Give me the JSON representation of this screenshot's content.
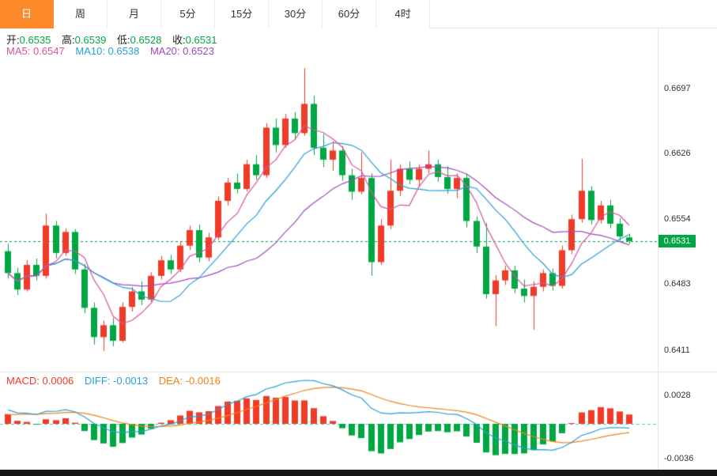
{
  "tabbar": {
    "tabs": [
      {
        "label": "日",
        "active": true
      },
      {
        "label": "周",
        "active": false
      },
      {
        "label": "月",
        "active": false
      },
      {
        "label": "5分",
        "active": false
      },
      {
        "label": "15分",
        "active": false
      },
      {
        "label": "30分",
        "active": false
      },
      {
        "label": "60分",
        "active": false
      },
      {
        "label": "4时",
        "active": false
      }
    ]
  },
  "ohlc_info": {
    "open_label": "开:",
    "open": "0.6535",
    "high_label": "高:",
    "high": "0.6539",
    "low_label": "低:",
    "low": "0.6528",
    "close_label": "收:",
    "close": "0.6531"
  },
  "ma_info": {
    "ma5_label": "MA5:",
    "ma5": "0.6547",
    "ma10_label": "MA10:",
    "ma10": "0.6538",
    "ma20_label": "MA20:",
    "ma20": "0.6523"
  },
  "macd_info": {
    "macd_label": "MACD:",
    "macd": "0.0006",
    "diff_label": "DIFF:",
    "diff": "-0.0013",
    "dea_label": "DEA:",
    "dea": "-0.0016"
  },
  "colors": {
    "up": "#f03b28",
    "down": "#00a843",
    "ma5": "#d8549c",
    "ma10": "#28a0d8",
    "ma20": "#a048c0",
    "diff_line": "#28a0d8",
    "dea_line": "#f08418",
    "zero_line": "#58c8b8",
    "last_price_line": "#00a843",
    "price_tag_bg": "#00a843",
    "tab_active_bg": "#fc8a2a",
    "axis_text": "#333333"
  },
  "chart_data": {
    "type": "candlestick",
    "title": "",
    "price_axis_labels": [
      "0.6697",
      "0.6626",
      "0.6554",
      "0.6483",
      "0.6411"
    ],
    "macd_axis_labels": [
      "0.0028",
      "-0.0036"
    ],
    "last_price": "0.6531",
    "price_range": [
      0.639,
      0.676
    ],
    "macd_range": [
      -0.0045,
      0.0045
    ],
    "overlays": [
      {
        "name": "MA5",
        "period": 5,
        "value": 0.6547
      },
      {
        "name": "MA10",
        "period": 10,
        "value": 0.6538
      },
      {
        "name": "MA20",
        "period": 20,
        "value": 0.6523
      }
    ],
    "indicator": {
      "name": "MACD",
      "macd": 0.0006,
      "diff": -0.0013,
      "dea": -0.0016
    },
    "candles": [
      [
        0.652,
        0.6528,
        0.649,
        0.6496
      ],
      [
        0.6496,
        0.6502,
        0.6472,
        0.6478
      ],
      [
        0.6478,
        0.651,
        0.6476,
        0.6505
      ],
      [
        0.6505,
        0.6512,
        0.6488,
        0.6493
      ],
      [
        0.6493,
        0.6561,
        0.649,
        0.6548
      ],
      [
        0.6548,
        0.6553,
        0.6512,
        0.6518
      ],
      [
        0.6518,
        0.6545,
        0.6515,
        0.6541
      ],
      [
        0.6541,
        0.6544,
        0.6495,
        0.65
      ],
      [
        0.65,
        0.6506,
        0.6452,
        0.6458
      ],
      [
        0.6458,
        0.6464,
        0.6418,
        0.6426
      ],
      [
        0.6426,
        0.6444,
        0.6411,
        0.6439
      ],
      [
        0.6439,
        0.6447,
        0.6416,
        0.6422
      ],
      [
        0.6422,
        0.6464,
        0.642,
        0.6459
      ],
      [
        0.6459,
        0.6481,
        0.6454,
        0.6476
      ],
      [
        0.6476,
        0.6487,
        0.6461,
        0.6467
      ],
      [
        0.6467,
        0.6497,
        0.6464,
        0.6493
      ],
      [
        0.6493,
        0.6515,
        0.6489,
        0.651
      ],
      [
        0.651,
        0.6516,
        0.6495,
        0.65
      ],
      [
        0.65,
        0.6531,
        0.6497,
        0.6526
      ],
      [
        0.6526,
        0.6548,
        0.6521,
        0.6543
      ],
      [
        0.6543,
        0.6549,
        0.6508,
        0.6513
      ],
      [
        0.6513,
        0.654,
        0.6509,
        0.6535
      ],
      [
        0.6535,
        0.658,
        0.6532,
        0.6575
      ],
      [
        0.6575,
        0.66,
        0.657,
        0.6595
      ],
      [
        0.6595,
        0.6605,
        0.6583,
        0.6588
      ],
      [
        0.6588,
        0.662,
        0.6585,
        0.6615
      ],
      [
        0.6615,
        0.6625,
        0.6598,
        0.6603
      ],
      [
        0.6603,
        0.666,
        0.66,
        0.6655
      ],
      [
        0.6655,
        0.6665,
        0.6628,
        0.6636
      ],
      [
        0.6636,
        0.667,
        0.6633,
        0.6665
      ],
      [
        0.6665,
        0.6672,
        0.6643,
        0.6649
      ],
      [
        0.6649,
        0.672,
        0.6646,
        0.6681
      ],
      [
        0.6681,
        0.669,
        0.6625,
        0.6633
      ],
      [
        0.6633,
        0.6648,
        0.6612,
        0.662
      ],
      [
        0.662,
        0.664,
        0.6608,
        0.663
      ],
      [
        0.663,
        0.6635,
        0.6597,
        0.6603
      ],
      [
        0.6603,
        0.661,
        0.6576,
        0.6585
      ],
      [
        0.6585,
        0.6628,
        0.6582,
        0.66
      ],
      [
        0.66,
        0.6605,
        0.6493,
        0.6508
      ],
      [
        0.6508,
        0.6555,
        0.6505,
        0.6548
      ],
      [
        0.6548,
        0.662,
        0.6544,
        0.6586
      ],
      [
        0.6586,
        0.6615,
        0.658,
        0.661
      ],
      [
        0.661,
        0.6618,
        0.6593,
        0.6598
      ],
      [
        0.6598,
        0.6615,
        0.659,
        0.661
      ],
      [
        0.661,
        0.663,
        0.6605,
        0.6615
      ],
      [
        0.6615,
        0.662,
        0.6596,
        0.6601
      ],
      [
        0.6601,
        0.6613,
        0.6583,
        0.6588
      ],
      [
        0.6588,
        0.6605,
        0.6578,
        0.66
      ],
      [
        0.66,
        0.6605,
        0.6546,
        0.6553
      ],
      [
        0.6553,
        0.6558,
        0.6518,
        0.6525
      ],
      [
        0.6525,
        0.6551,
        0.6468,
        0.6473
      ],
      [
        0.6473,
        0.6494,
        0.6438,
        0.6488
      ],
      [
        0.6488,
        0.6504,
        0.6483,
        0.6499
      ],
      [
        0.6499,
        0.6504,
        0.6474,
        0.6479
      ],
      [
        0.6479,
        0.6489,
        0.6464,
        0.6471
      ],
      [
        0.6471,
        0.6487,
        0.6434,
        0.6481
      ],
      [
        0.6481,
        0.65,
        0.6476,
        0.6496
      ],
      [
        0.6496,
        0.6501,
        0.6477,
        0.6482
      ],
      [
        0.6482,
        0.6526,
        0.6479,
        0.6521
      ],
      [
        0.6521,
        0.656,
        0.6517,
        0.6555
      ],
      [
        0.6555,
        0.6621,
        0.6551,
        0.6586
      ],
      [
        0.6586,
        0.6591,
        0.6549,
        0.6554
      ],
      [
        0.6554,
        0.6575,
        0.655,
        0.657
      ],
      [
        0.657,
        0.6576,
        0.6545,
        0.655
      ],
      [
        0.655,
        0.6556,
        0.6531,
        0.6536
      ],
      [
        0.6535,
        0.6539,
        0.6528,
        0.6531
      ]
    ]
  }
}
